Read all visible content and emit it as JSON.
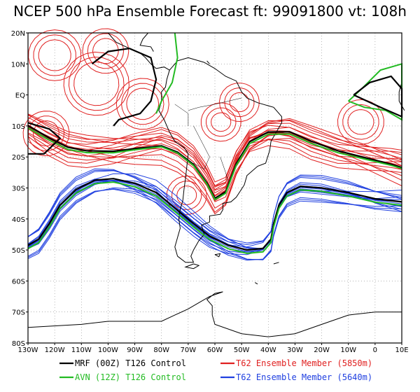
{
  "title": "NCEP 500 hPa Ensemble Forecast   ft: 99091800 vt: 108h",
  "lat_ticks": [
    "20N",
    "10N",
    "EQ",
    "10S",
    "20S",
    "30S",
    "40S",
    "50S",
    "60S",
    "70S",
    "80S"
  ],
  "lon_ticks": [
    "130W",
    "120W",
    "110W",
    "100W",
    "90W",
    "80W",
    "70W",
    "60W",
    "50W",
    "40W",
    "30W",
    "20W",
    "10W",
    "0",
    "10E"
  ],
  "legend": [
    {
      "label": "MRF (00Z) T126 Control",
      "color": "#000000"
    },
    {
      "label": "AVN (12Z) T126 Control",
      "color": "#22bb22"
    },
    {
      "label": "T62 Ensemble Member (5850m)",
      "color": "#e02020"
    },
    {
      "label": "T62 Ensemble Member (5640m)",
      "color": "#2040e0"
    }
  ],
  "colors": {
    "mrf": "#000000",
    "avn": "#22bb22",
    "ens5850": "#e02020",
    "ens5640": "#2040e0",
    "coast": "#000000"
  },
  "chart_data": {
    "type": "map",
    "title": "NCEP 500 hPa Ensemble Forecast   ft: 99091800 vt: 108h",
    "lon_range": [
      -130,
      10
    ],
    "lat_range": [
      -80,
      20
    ],
    "contour_levels_m": [
      5850,
      5640
    ]
  }
}
